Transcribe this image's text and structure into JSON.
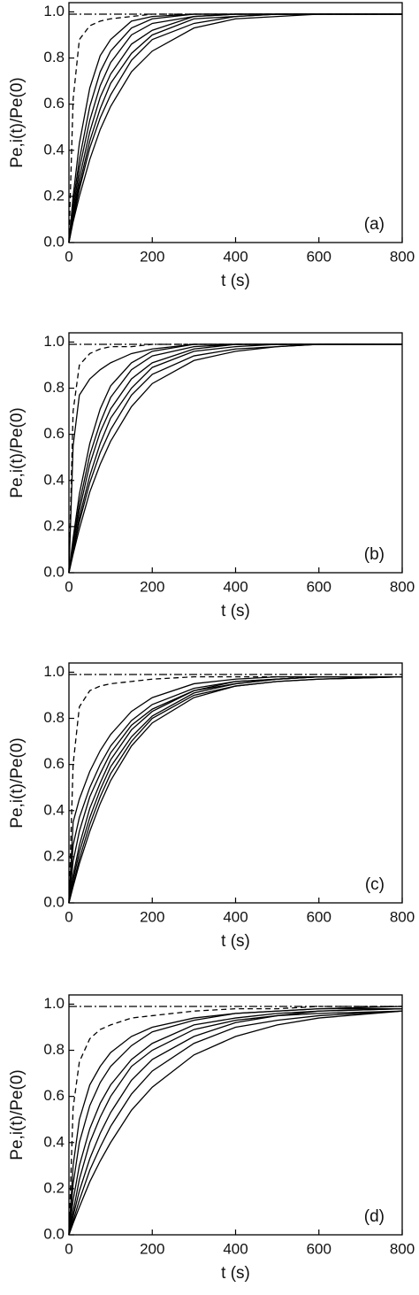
{
  "chart_data": [
    {
      "type": "line",
      "ylabel": "Pe,i(t)/Pe(0)",
      "xlabel": "t (s)",
      "annotation": "(a)",
      "xlim": [
        0,
        800
      ],
      "ylim": [
        0,
        1.04
      ],
      "xticks": [
        0,
        200,
        400,
        600,
        800
      ],
      "yticks": [
        {
          "value": 0,
          "label": "0.0"
        },
        0.2,
        0.4,
        0.6,
        0.8,
        {
          "value": 1,
          "label": "1.0"
        }
      ],
      "x": [
        0,
        10,
        25,
        50,
        75,
        100,
        150,
        200,
        300,
        400,
        500,
        600,
        800
      ],
      "series": [
        {
          "color": "#000",
          "style": "dashdot",
          "values": [
            0.99,
            0.99,
            0.99,
            0.99,
            0.99,
            0.99,
            0.99,
            0.99,
            0.99,
            0.99,
            0.99,
            0.99,
            0.99
          ]
        },
        {
          "color": "#000",
          "style": "dashed",
          "values": [
            0,
            0.62,
            0.88,
            0.94,
            0.96,
            0.97,
            0.98,
            0.99,
            0.99,
            0.99,
            0.99,
            0.99,
            0.99
          ]
        },
        {
          "color": "#000",
          "style": "solid",
          "values": [
            0,
            0.2,
            0.43,
            0.67,
            0.81,
            0.88,
            0.96,
            0.98,
            0.99,
            0.99,
            0.99,
            0.99,
            0.99
          ]
        },
        {
          "color": "#000",
          "style": "solid",
          "values": [
            0,
            0.17,
            0.36,
            0.59,
            0.74,
            0.83,
            0.93,
            0.97,
            0.99,
            0.99,
            0.99,
            0.99,
            0.99
          ]
        },
        {
          "color": "#000",
          "style": "solid",
          "values": [
            0,
            0.14,
            0.32,
            0.53,
            0.68,
            0.78,
            0.9,
            0.95,
            0.98,
            0.99,
            0.99,
            0.99,
            0.99
          ]
        },
        {
          "color": "#000",
          "style": "solid",
          "values": [
            0,
            0.12,
            0.28,
            0.48,
            0.63,
            0.73,
            0.86,
            0.92,
            0.98,
            0.99,
            0.99,
            0.99,
            0.99
          ]
        },
        {
          "color": "#000",
          "style": "solid",
          "values": [
            0,
            0.11,
            0.25,
            0.44,
            0.58,
            0.69,
            0.82,
            0.9,
            0.97,
            0.98,
            0.99,
            0.99,
            0.99
          ]
        },
        {
          "color": "#000",
          "style": "solid",
          "values": [
            0,
            0.1,
            0.23,
            0.41,
            0.54,
            0.64,
            0.79,
            0.88,
            0.95,
            0.98,
            0.99,
            0.99,
            0.99
          ]
        },
        {
          "color": "#000",
          "style": "solid",
          "values": [
            0,
            0.09,
            0.2,
            0.36,
            0.49,
            0.59,
            0.74,
            0.83,
            0.93,
            0.97,
            0.98,
            0.99,
            0.99
          ]
        }
      ]
    },
    {
      "type": "line",
      "ylabel": "Pe,i(t)/Pe(0)",
      "xlabel": "t (s)",
      "annotation": "(b)",
      "xlim": [
        0,
        800
      ],
      "ylim": [
        0,
        1.04
      ],
      "xticks": [
        0,
        200,
        400,
        600,
        800
      ],
      "yticks": [
        {
          "value": 0,
          "label": "0.0"
        },
        0.2,
        0.4,
        0.6,
        0.8,
        {
          "value": 1,
          "label": "1.0"
        }
      ],
      "x": [
        0,
        10,
        25,
        50,
        75,
        100,
        150,
        200,
        300,
        400,
        500,
        600,
        800
      ],
      "series": [
        {
          "color": "#000",
          "style": "dashdot",
          "values": [
            0.99,
            0.99,
            0.99,
            0.99,
            0.99,
            0.99,
            0.99,
            0.99,
            0.99,
            0.99,
            0.99,
            0.99,
            0.99
          ]
        },
        {
          "color": "#000",
          "style": "dashed",
          "values": [
            0,
            0.7,
            0.9,
            0.95,
            0.97,
            0.98,
            0.98,
            0.99,
            0.99,
            0.99,
            0.99,
            0.99,
            0.99
          ]
        },
        {
          "color": "#000",
          "style": "solid",
          "values": [
            0,
            0.55,
            0.77,
            0.84,
            0.88,
            0.91,
            0.95,
            0.97,
            0.99,
            0.99,
            0.99,
            0.99,
            0.99
          ]
        },
        {
          "color": "#000",
          "style": "solid",
          "values": [
            0,
            0.15,
            0.34,
            0.56,
            0.71,
            0.81,
            0.91,
            0.96,
            0.99,
            0.99,
            0.99,
            0.99,
            0.99
          ]
        },
        {
          "color": "#000",
          "style": "solid",
          "values": [
            0,
            0.13,
            0.3,
            0.51,
            0.65,
            0.76,
            0.88,
            0.94,
            0.98,
            0.99,
            0.99,
            0.99,
            0.99
          ]
        },
        {
          "color": "#000",
          "style": "solid",
          "values": [
            0,
            0.12,
            0.27,
            0.47,
            0.61,
            0.71,
            0.84,
            0.91,
            0.97,
            0.99,
            0.99,
            0.99,
            0.99
          ]
        },
        {
          "color": "#000",
          "style": "solid",
          "values": [
            0,
            0.1,
            0.24,
            0.42,
            0.56,
            0.67,
            0.8,
            0.89,
            0.96,
            0.98,
            0.99,
            0.99,
            0.99
          ]
        },
        {
          "color": "#000",
          "style": "solid",
          "values": [
            0,
            0.09,
            0.22,
            0.39,
            0.52,
            0.62,
            0.77,
            0.86,
            0.94,
            0.97,
            0.98,
            0.99,
            0.99
          ]
        },
        {
          "color": "#000",
          "style": "solid",
          "values": [
            0,
            0.08,
            0.19,
            0.35,
            0.47,
            0.57,
            0.72,
            0.82,
            0.92,
            0.96,
            0.98,
            0.99,
            0.99
          ]
        }
      ]
    },
    {
      "type": "line",
      "ylabel": "Pe,i(t)/Pe(0)",
      "xlabel": "t (s)",
      "annotation": "(c)",
      "xlim": [
        0,
        800
      ],
      "ylim": [
        0,
        1.04
      ],
      "xticks": [
        0,
        200,
        400,
        600,
        800
      ],
      "yticks": [
        {
          "value": 0,
          "label": "0.0"
        },
        0.2,
        0.4,
        0.6,
        0.8,
        {
          "value": 1,
          "label": "1.0"
        }
      ],
      "x": [
        0,
        10,
        25,
        50,
        75,
        100,
        150,
        200,
        300,
        400,
        500,
        600,
        800
      ],
      "series": [
        {
          "color": "#000",
          "style": "dashdot",
          "values": [
            0.99,
            0.99,
            0.99,
            0.99,
            0.99,
            0.99,
            0.99,
            0.99,
            0.99,
            0.99,
            0.99,
            0.99,
            0.99
          ]
        },
        {
          "color": "#000",
          "style": "dashed",
          "values": [
            0,
            0.6,
            0.85,
            0.92,
            0.94,
            0.95,
            0.96,
            0.97,
            0.98,
            0.98,
            0.98,
            0.98,
            0.98
          ]
        },
        {
          "color": "#000",
          "style": "solid",
          "values": [
            0,
            0.35,
            0.45,
            0.57,
            0.66,
            0.73,
            0.83,
            0.89,
            0.95,
            0.97,
            0.98,
            0.98,
            0.98
          ]
        },
        {
          "color": "#000",
          "style": "solid",
          "values": [
            0,
            0.25,
            0.37,
            0.5,
            0.6,
            0.68,
            0.79,
            0.86,
            0.93,
            0.96,
            0.97,
            0.98,
            0.98
          ]
        },
        {
          "color": "#000",
          "style": "solid",
          "values": [
            0,
            0.18,
            0.31,
            0.46,
            0.56,
            0.65,
            0.77,
            0.84,
            0.92,
            0.96,
            0.97,
            0.98,
            0.98
          ]
        },
        {
          "color": "#000",
          "style": "solid",
          "values": [
            0,
            0.12,
            0.25,
            0.41,
            0.52,
            0.62,
            0.75,
            0.83,
            0.92,
            0.95,
            0.97,
            0.98,
            0.98
          ]
        },
        {
          "color": "#000",
          "style": "solid",
          "values": [
            0,
            0.1,
            0.22,
            0.37,
            0.49,
            0.59,
            0.72,
            0.81,
            0.91,
            0.95,
            0.97,
            0.98,
            0.98
          ]
        },
        {
          "color": "#000",
          "style": "solid",
          "values": [
            0,
            0.08,
            0.19,
            0.34,
            0.46,
            0.56,
            0.7,
            0.8,
            0.9,
            0.94,
            0.96,
            0.97,
            0.98
          ]
        },
        {
          "color": "#000",
          "style": "solid",
          "values": [
            0,
            0.07,
            0.17,
            0.31,
            0.43,
            0.53,
            0.68,
            0.78,
            0.89,
            0.94,
            0.96,
            0.97,
            0.98
          ]
        }
      ]
    },
    {
      "type": "line",
      "ylabel": "Pe,i(t)/Pe(0)",
      "xlabel": "t (s)",
      "annotation": "(d)",
      "xlim": [
        0,
        800
      ],
      "ylim": [
        0,
        1.04
      ],
      "xticks": [
        0,
        200,
        400,
        600,
        800
      ],
      "yticks": [
        {
          "value": 0,
          "label": "0.0"
        },
        0.2,
        0.4,
        0.6,
        0.8,
        {
          "value": 1,
          "label": "1.0"
        }
      ],
      "x": [
        0,
        10,
        25,
        50,
        75,
        100,
        150,
        200,
        300,
        400,
        500,
        600,
        800
      ],
      "series": [
        {
          "color": "#000",
          "style": "dashdot",
          "values": [
            0.99,
            0.99,
            0.99,
            0.99,
            0.99,
            0.99,
            0.99,
            0.99,
            0.99,
            0.99,
            0.99,
            0.99,
            0.99
          ]
        },
        {
          "color": "#000",
          "style": "dashed",
          "values": [
            0,
            0.55,
            0.75,
            0.85,
            0.89,
            0.91,
            0.94,
            0.95,
            0.97,
            0.98,
            0.98,
            0.99,
            0.99
          ]
        },
        {
          "color": "#000",
          "style": "solid",
          "values": [
            0,
            0.3,
            0.5,
            0.65,
            0.73,
            0.79,
            0.86,
            0.9,
            0.94,
            0.96,
            0.97,
            0.98,
            0.99
          ]
        },
        {
          "color": "#000",
          "style": "solid",
          "values": [
            0,
            0.22,
            0.4,
            0.56,
            0.66,
            0.73,
            0.82,
            0.88,
            0.93,
            0.96,
            0.97,
            0.98,
            0.98
          ]
        },
        {
          "color": "#000",
          "style": "solid",
          "values": [
            0,
            0.15,
            0.3,
            0.46,
            0.57,
            0.65,
            0.76,
            0.83,
            0.91,
            0.94,
            0.96,
            0.97,
            0.98
          ]
        },
        {
          "color": "#000",
          "style": "solid",
          "values": [
            0,
            0.1,
            0.24,
            0.4,
            0.51,
            0.6,
            0.73,
            0.8,
            0.89,
            0.93,
            0.95,
            0.97,
            0.98
          ]
        },
        {
          "color": "#000",
          "style": "solid",
          "values": [
            0,
            0.08,
            0.19,
            0.33,
            0.44,
            0.53,
            0.67,
            0.76,
            0.86,
            0.92,
            0.95,
            0.96,
            0.97
          ]
        },
        {
          "color": "#000",
          "style": "solid",
          "values": [
            0,
            0.06,
            0.15,
            0.28,
            0.38,
            0.47,
            0.61,
            0.71,
            0.83,
            0.9,
            0.93,
            0.95,
            0.97
          ]
        },
        {
          "color": "#000",
          "style": "solid",
          "values": [
            0,
            0.05,
            0.12,
            0.23,
            0.32,
            0.4,
            0.54,
            0.64,
            0.78,
            0.86,
            0.91,
            0.94,
            0.97
          ]
        }
      ]
    }
  ]
}
